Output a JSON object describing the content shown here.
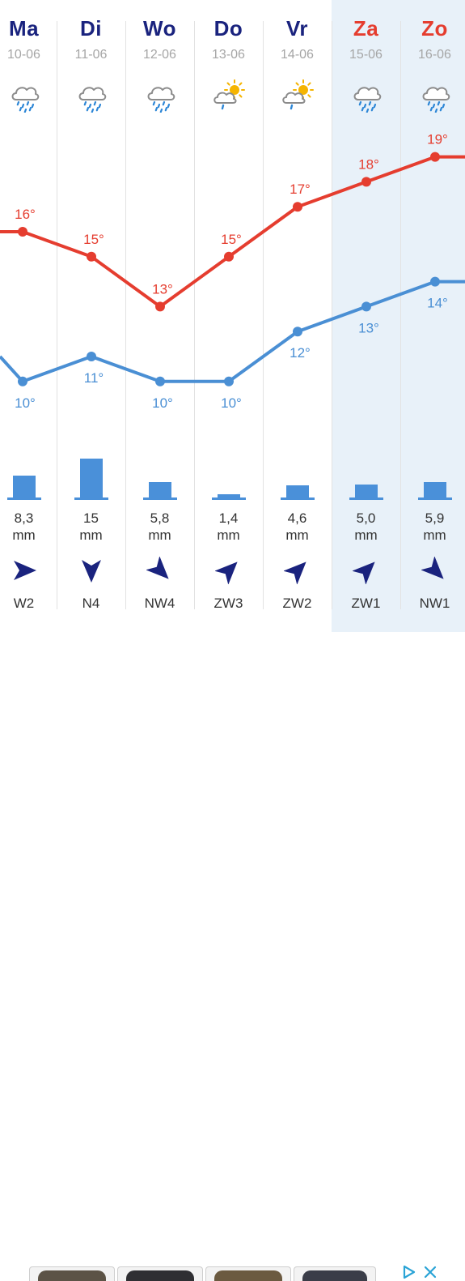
{
  "days": [
    {
      "day": "Ma",
      "date": "10-06",
      "icon": "rain-icon",
      "rain": "8,3",
      "unit": "mm",
      "rain_mm": 8.3,
      "wind": "W2",
      "wind_dir": "west",
      "wind_rot": 0,
      "weekend": false
    },
    {
      "day": "Di",
      "date": "11-06",
      "icon": "rain-icon",
      "rain": "15",
      "unit": "mm",
      "rain_mm": 15,
      "wind": "N4",
      "wind_dir": "north",
      "wind_rot": 90,
      "weekend": false
    },
    {
      "day": "Wo",
      "date": "12-06",
      "icon": "rain-icon",
      "rain": "5,8",
      "unit": "mm",
      "rain_mm": 5.8,
      "wind": "NW4",
      "wind_dir": "north-west",
      "wind_rot": 45,
      "weekend": false
    },
    {
      "day": "Do",
      "date": "13-06",
      "icon": "sun-rain-icon",
      "rain": "1,4",
      "unit": "mm",
      "rain_mm": 1.4,
      "wind": "ZW3",
      "wind_dir": "south-west",
      "wind_rot": -45,
      "weekend": false
    },
    {
      "day": "Vr",
      "date": "14-06",
      "icon": "sun-rain-icon",
      "rain": "4,6",
      "unit": "mm",
      "rain_mm": 4.6,
      "wind": "ZW2",
      "wind_dir": "south-west",
      "wind_rot": -45,
      "weekend": false
    },
    {
      "day": "Za",
      "date": "15-06",
      "icon": "rain-icon",
      "rain": "5,0",
      "unit": "mm",
      "rain_mm": 5.0,
      "wind": "ZW1",
      "wind_dir": "south-west",
      "wind_rot": -45,
      "weekend": true
    },
    {
      "day": "Zo",
      "date": "16-06",
      "icon": "rain-icon",
      "rain": "5,9",
      "unit": "mm",
      "rain_mm": 5.9,
      "wind": "NW1",
      "wind_dir": "north-west",
      "wind_rot": 45,
      "weekend": true
    }
  ],
  "chart_data": {
    "type": "line",
    "categories": [
      "Ma",
      "Di",
      "Wo",
      "Do",
      "Vr",
      "Za",
      "Zo"
    ],
    "series": [
      {
        "values": [
          16,
          15,
          13,
          15,
          17,
          18,
          19
        ],
        "labels": [
          "16°",
          "15°",
          "13°",
          "15°",
          "17°",
          "18°",
          "19°"
        ],
        "color": "#e53d2f",
        "label_position": "above"
      },
      {
        "values": [
          10,
          11,
          10,
          10,
          12,
          13,
          14
        ],
        "labels": [
          "10°",
          "11°",
          "10°",
          "10°",
          "12°",
          "13°",
          "14°"
        ],
        "color": "#4a8fd4",
        "label_position": "below"
      }
    ],
    "ylim": [
      9,
      20
    ],
    "grid": false
  },
  "colors": {
    "max_temp": "#e53d2f",
    "min_temp": "#4a8fd4",
    "day_name": "#1a237e",
    "weekend_day": "#e53d2f",
    "rain_bar": "#4a90d9",
    "wind_arrow": "#1a237e",
    "weekend_bg": "#e8f1f9"
  }
}
